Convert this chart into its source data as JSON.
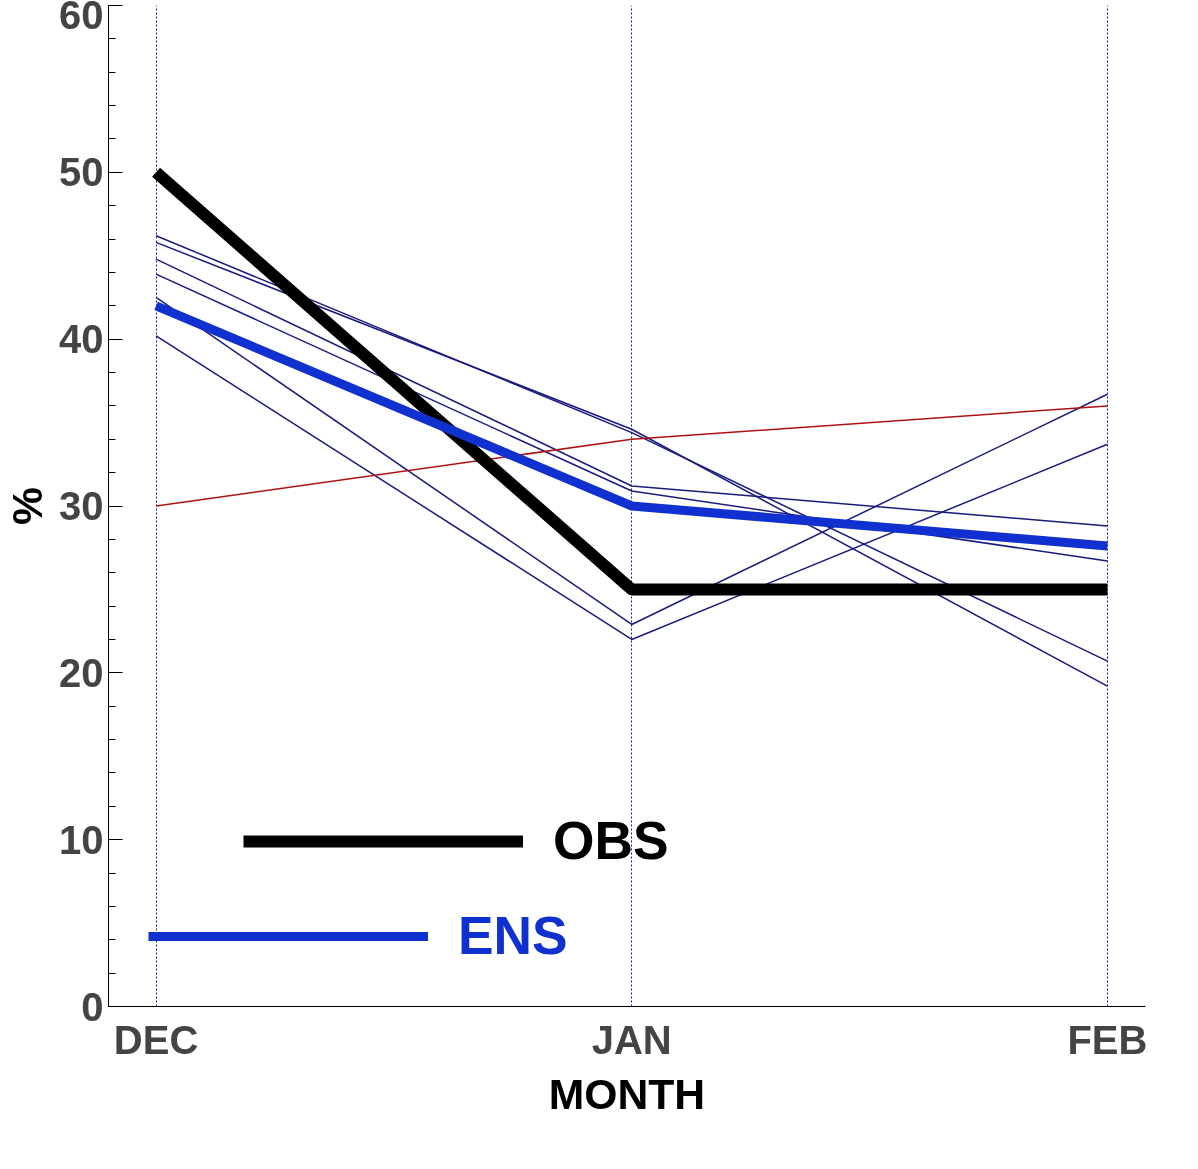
{
  "chart_data": {
    "type": "line",
    "xlabel": "MONTH",
    "ylabel": "%",
    "categories": [
      "DEC",
      "JAN",
      "FEB"
    ],
    "ylim": [
      0,
      60
    ],
    "yticks": [
      0,
      10,
      20,
      30,
      40,
      50,
      60
    ],
    "grid": "x",
    "legend": "bottom left",
    "marker": "none",
    "line_style": "solid",
    "series": [
      {
        "color": "#1a1a80",
        "values": [
          46.2,
          34.4,
          20.7
        ]
      },
      {
        "color": "#1a1a80",
        "values": [
          45.8,
          34.6,
          19.2
        ]
      },
      {
        "color": "#1a1a80",
        "values": [
          44.8,
          31.2,
          28.8
        ]
      },
      {
        "color": "#1a1a80",
        "values": [
          43.9,
          30.9,
          26.7
        ]
      },
      {
        "color": "#1a1a80",
        "values": [
          42.5,
          22.9,
          36.7
        ]
      },
      {
        "color": "#1a1a80",
        "values": [
          40.2,
          22.0,
          33.7
        ]
      },
      {
        "color": "#b01010",
        "values": [
          30,
          34,
          36
        ]
      },
      {
        "name": "OBS",
        "color": "#000000",
        "values": [
          50,
          25,
          25
        ]
      },
      {
        "name": "ENS",
        "color": "#1030d0",
        "values": [
          42,
          30,
          27.6
        ]
      }
    ]
  }
}
